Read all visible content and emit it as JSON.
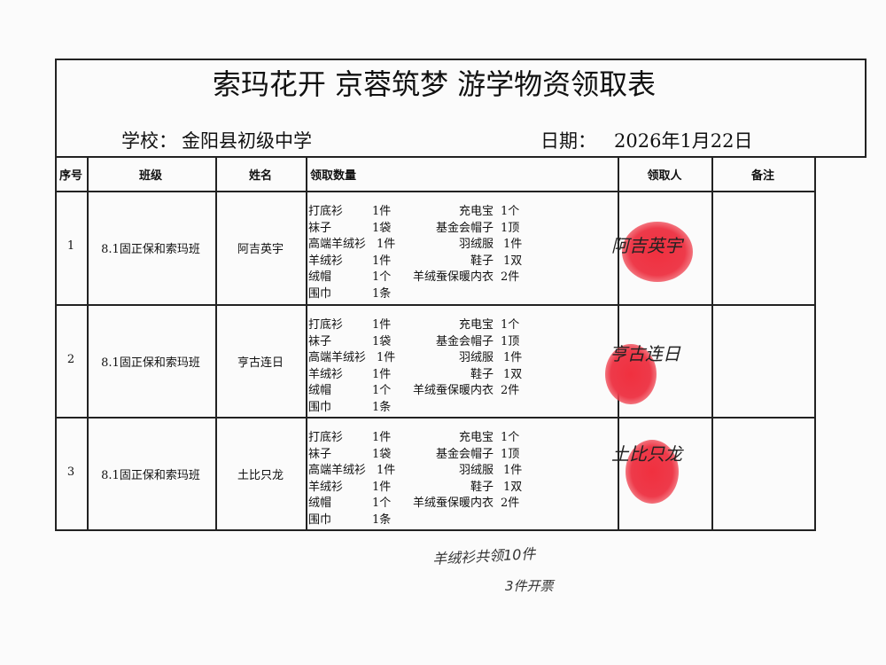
{
  "header": {
    "title": "索玛花开 京蓉筑梦 游学物资领取表",
    "school_label": "学校：",
    "school": "金阳县初级中学",
    "date_label": "日期：",
    "date": "2026年1月22日"
  },
  "table": {
    "columns": [
      "序号",
      "班级",
      "姓名",
      "领取数量",
      "领取人",
      "备注"
    ],
    "rows": [
      {
        "no": "1",
        "class": "8.1固正保和索玛班",
        "name": "阿吉英宇",
        "items": [
          [
            "打底衫",
            "1件",
            "充电宝",
            "1个"
          ],
          [
            "袜子",
            "1袋",
            "基金会帽子",
            "1顶"
          ],
          [
            "高端羊绒衫",
            "1件",
            "羽绒服",
            "1件"
          ],
          [
            "羊绒衫",
            "1件",
            "鞋子",
            "1双"
          ],
          [
            "绒帽",
            "1个",
            "羊绒蚕保暖内衣",
            "2件"
          ],
          [
            "围巾",
            "1条"
          ]
        ],
        "signature": "阿吉英宇"
      },
      {
        "no": "2",
        "class": "8.1固正保和索玛班",
        "name": "亨古连日",
        "items": [
          [
            "打底衫",
            "1件",
            "充电宝",
            "1个"
          ],
          [
            "袜子",
            "1袋",
            "基金会帽子",
            "1顶"
          ],
          [
            "高端羊绒衫",
            "1件",
            "羽绒服",
            "1件"
          ],
          [
            "羊绒衫",
            "1件",
            "鞋子",
            "1双"
          ],
          [
            "绒帽",
            "1个",
            "羊绒蚕保暖内衣",
            "2件"
          ],
          [
            "围巾",
            "1条"
          ]
        ],
        "signature": "亨古连日"
      },
      {
        "no": "3",
        "class": "8.1固正保和索玛班",
        "name": "土比只龙",
        "items": [
          [
            "打底衫",
            "1件",
            "充电宝",
            "1个"
          ],
          [
            "袜子",
            "1袋",
            "基金会帽子",
            "1顶"
          ],
          [
            "高端羊绒衫",
            "1件",
            "羽绒服",
            "1件"
          ],
          [
            "羊绒衫",
            "1件",
            "鞋子",
            "1双"
          ],
          [
            "绒帽",
            "1个",
            "羊绒蚕保暖内衣",
            "2件"
          ],
          [
            "围巾",
            "1条"
          ]
        ],
        "signature": "土比只龙"
      }
    ]
  },
  "note": [
    "羊绒衫共领10件",
    "3件开票"
  ]
}
